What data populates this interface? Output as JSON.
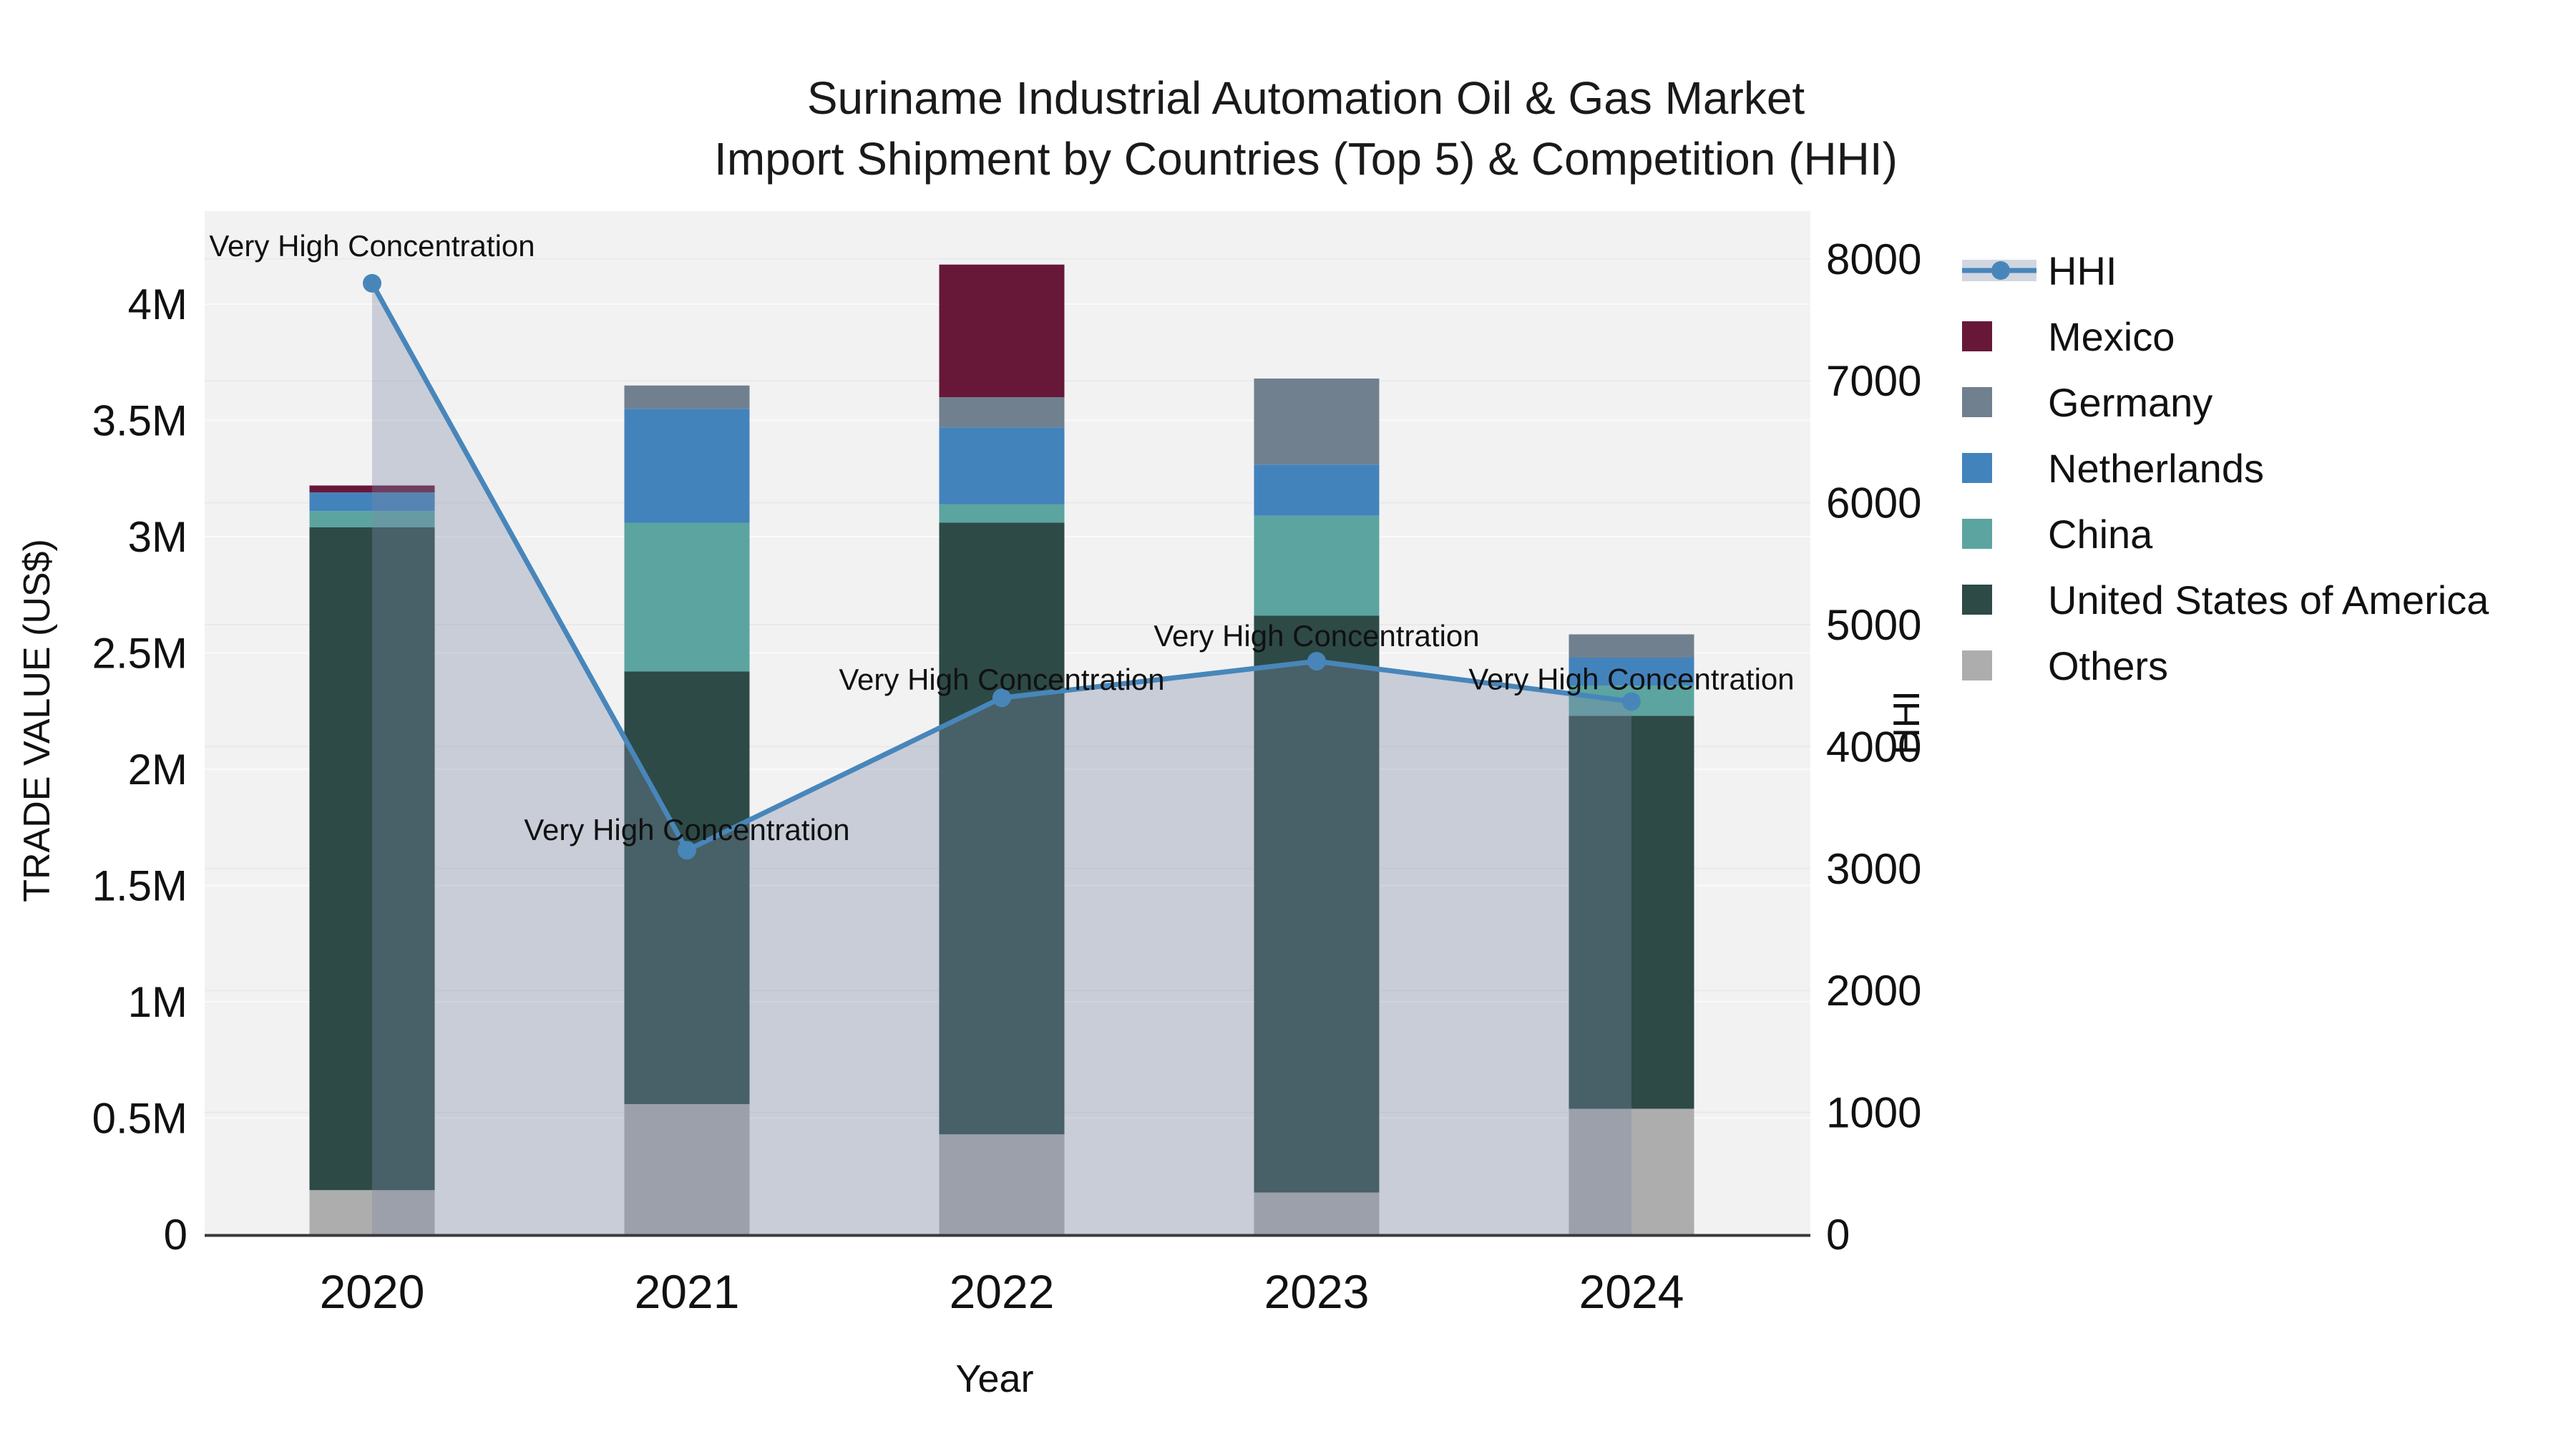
{
  "title": {
    "line1": "Suriname Industrial Automation Oil & Gas Market",
    "line2": "Import Shipment by Countries (Top 5) & Competition (HHI)"
  },
  "axes": {
    "x": {
      "title": "Year",
      "categories": [
        "2020",
        "2021",
        "2022",
        "2023",
        "2024"
      ]
    },
    "y_left": {
      "title": "TRADE VALUE (US$)",
      "tick_labels": [
        "0",
        "0.5M",
        "1M",
        "1.5M",
        "2M",
        "2.5M",
        "3M",
        "3.5M",
        "4M"
      ],
      "tick_values": [
        0,
        0.5,
        1,
        1.5,
        2,
        2.5,
        3,
        3.5,
        4
      ]
    },
    "y_right": {
      "title": "HHI",
      "tick_labels": [
        "0",
        "1000",
        "2000",
        "3000",
        "4000",
        "5000",
        "6000",
        "7000",
        "8000"
      ],
      "tick_values": [
        0,
        1000,
        2000,
        3000,
        4000,
        5000,
        6000,
        7000,
        8000
      ]
    }
  },
  "legend": {
    "items": [
      {
        "label": "HHI",
        "type": "line",
        "color": "#4886ba"
      },
      {
        "label": "Mexico",
        "type": "square",
        "color": "#671839"
      },
      {
        "label": "Germany",
        "type": "square",
        "color": "#71808f"
      },
      {
        "label": "Netherlands",
        "type": "square",
        "color": "#4383bc"
      },
      {
        "label": "China",
        "type": "square",
        "color": "#5ca4a0"
      },
      {
        "label": "United States of America",
        "type": "square",
        "color": "#2d4a46"
      },
      {
        "label": "Others",
        "type": "square",
        "color": "#adadad"
      }
    ]
  },
  "chart_data": {
    "type": "combo",
    "categories": [
      "2020",
      "2021",
      "2022",
      "2023",
      "2024"
    ],
    "bar_value_unit": "million US$",
    "stack_order_bottom_to_top": [
      "Others",
      "United States of America",
      "China",
      "Netherlands",
      "Germany",
      "Mexico"
    ],
    "series": [
      {
        "name": "Mexico",
        "type": "bar",
        "color": "#671839",
        "values": [
          0.03,
          0,
          0.57,
          0,
          0
        ]
      },
      {
        "name": "Germany",
        "type": "bar",
        "color": "#71808f",
        "values": [
          0,
          0.1,
          0.13,
          0.37,
          0.1
        ]
      },
      {
        "name": "Netherlands",
        "type": "bar",
        "color": "#4383bc",
        "values": [
          0.08,
          0.49,
          0.33,
          0.22,
          0.12
        ]
      },
      {
        "name": "China",
        "type": "bar",
        "color": "#5ca4a0",
        "values": [
          0.07,
          0.64,
          0.08,
          0.43,
          0.13
        ]
      },
      {
        "name": "United States of America",
        "type": "bar",
        "color": "#2d4a46",
        "values": [
          2.85,
          1.86,
          2.63,
          2.48,
          1.69
        ]
      },
      {
        "name": "Others",
        "type": "bar",
        "color": "#adadad",
        "values": [
          0.19,
          0.56,
          0.43,
          0.18,
          0.54
        ]
      }
    ],
    "line_series": {
      "name": "HHI",
      "type": "line+area",
      "axis": "right",
      "color": "#4886ba",
      "area_fill": "rgba(124,138,166,0.35)",
      "values": [
        7800,
        3150,
        4400,
        4700,
        4370
      ]
    },
    "annotations": [
      {
        "category": "2020",
        "text": "Very High Concentration",
        "dy": -52
      },
      {
        "category": "2021",
        "text": "Very High Concentration",
        "dy": -28
      },
      {
        "category": "2022",
        "text": "Very High Concentration",
        "dy": -25
      },
      {
        "category": "2023",
        "text": "Very High Concentration",
        "dy": -35
      },
      {
        "category": "2024",
        "text": "Very High Concentration",
        "dy": -31
      }
    ],
    "ylim_left": [
      0,
      4.4
    ],
    "ylim_right": [
      0,
      8392
    ],
    "grid": true,
    "legend_position": "right",
    "plot_background": "#f2f2f3",
    "grid_color": "#e9e9ec",
    "axisline_color": "#3a3a3a"
  }
}
